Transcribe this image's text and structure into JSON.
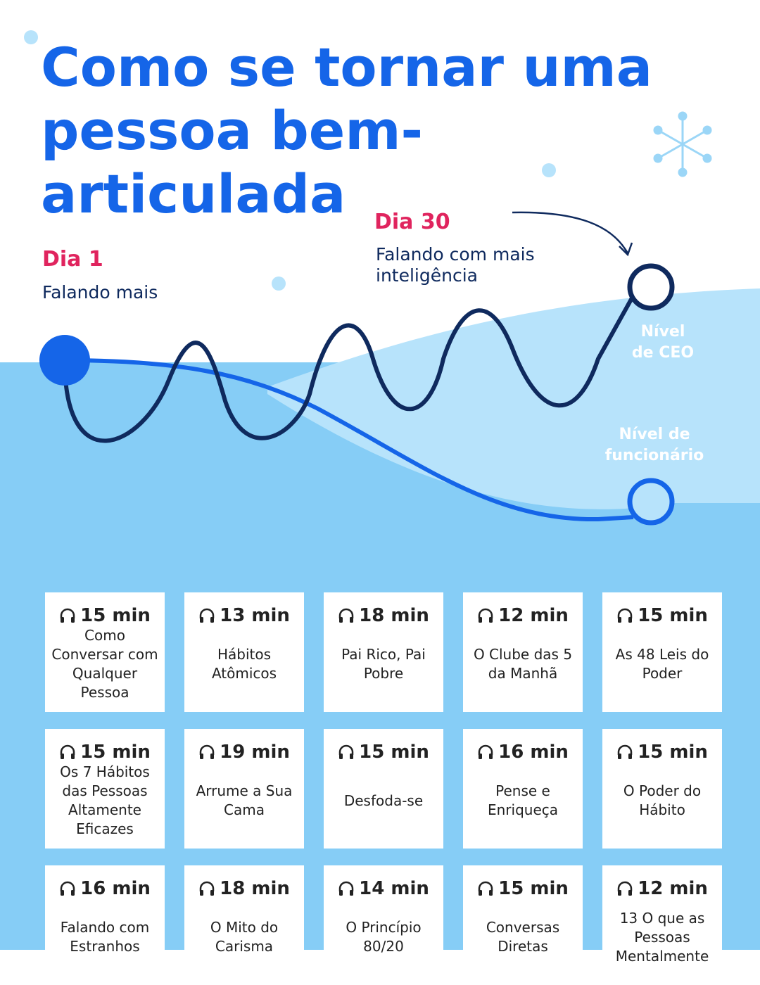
{
  "header": {
    "title_lines": [
      "Como se tornar uma",
      "pessoa bem-",
      "articulada"
    ]
  },
  "timeline": {
    "start": {
      "label": "Dia 1",
      "text": "Falando mais"
    },
    "end": {
      "label": "Dia 30",
      "text_lines": [
        "Falando com mais",
        "inteligência"
      ]
    },
    "levels": [
      {
        "lines": [
          "Nível",
          "de CEO"
        ]
      },
      {
        "lines": [
          "Nível de",
          "funcionário"
        ]
      }
    ]
  },
  "cards": [
    {
      "duration": "15 min",
      "title": "Como Conversar com Qualquer Pessoa"
    },
    {
      "duration": "13 min",
      "title": "Hábitos Atômicos"
    },
    {
      "duration": "18 min",
      "title": "Pai Rico, Pai Pobre"
    },
    {
      "duration": "12 min",
      "title": "O Clube das 5 da Manhã"
    },
    {
      "duration": "15 min",
      "title": "As 48 Leis do Poder"
    },
    {
      "duration": "15 min",
      "title": "Os 7 Hábitos das Pessoas Altamente Eficazes"
    },
    {
      "duration": "19 min",
      "title": "Arrume a Sua Cama"
    },
    {
      "duration": "15 min",
      "title": "Desfoda-se"
    },
    {
      "duration": "16 min",
      "title": "Pense e Enriqueça"
    },
    {
      "duration": "15 min",
      "title": "O Poder do Hábito"
    },
    {
      "duration": "16 min",
      "title": "Falando com Estranhos"
    },
    {
      "duration": "18 min",
      "title": "O Mito do Carisma"
    },
    {
      "duration": "14 min",
      "title": "O Princípio 80/20"
    },
    {
      "duration": "15 min",
      "title": "Conversas Diretas"
    },
    {
      "duration": "12 min",
      "title": "13 O que as Pessoas Mentalmente"
    }
  ]
}
